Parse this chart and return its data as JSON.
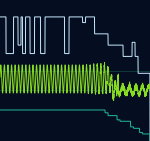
{
  "background_color": "#050e20",
  "figsize": [
    1.5,
    1.41
  ],
  "dpi": 100,
  "signals": {
    "top": {
      "color": "#c8e8ff",
      "linewidth": 0.7
    },
    "middle": {
      "color": "#88dd22",
      "linewidth": 0.7
    },
    "bottom_line1": {
      "color": "#22ccaa",
      "linewidth": 0.6
    },
    "bottom_line2": {
      "color": "#22ccaa",
      "linewidth": 0.6
    },
    "bottom_step": {
      "color": "#22bb99",
      "linewidth": 0.7
    }
  },
  "ylim": [
    0,
    1
  ],
  "xlim": [
    0,
    1
  ]
}
